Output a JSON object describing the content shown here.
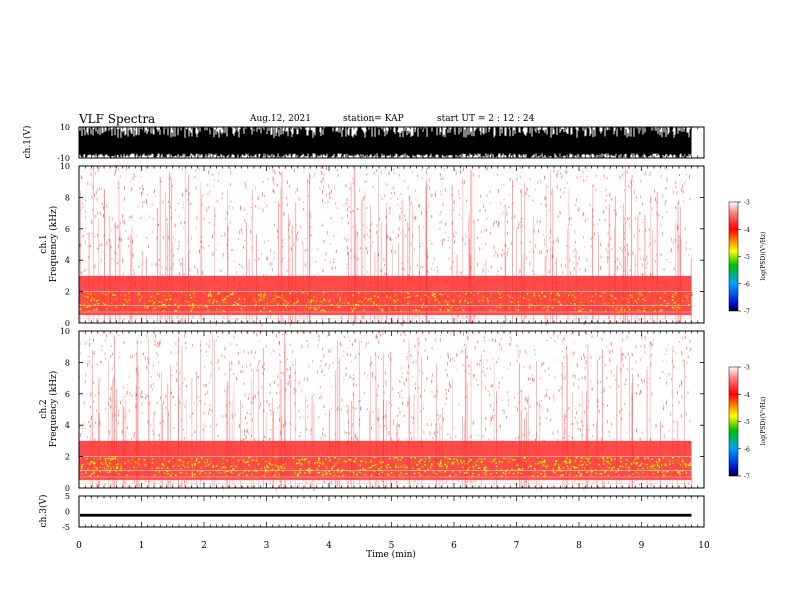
{
  "header": {
    "title": "VLF Spectra",
    "date": "Aug.12, 2021",
    "station": "station= KAP",
    "start": "start  UT  =   2 : 12 : 24"
  },
  "colors": {
    "strip": "#000000",
    "spectrogram_background": "#ffffff",
    "colormap": [
      "#ffffff",
      "#ff8080",
      "#ff0000",
      "#ff8000",
      "#ffff00",
      "#00c000",
      "#00a0ff",
      "#0000c0",
      "#000000"
    ]
  },
  "chart_data": [
    {
      "type": "area",
      "panel": "ch1-waveform",
      "ylabel": "ch.1(V)",
      "ylim": [
        -10,
        10
      ],
      "y_ticks": [
        "10",
        "-10"
      ],
      "x_ticks": [
        0,
        1,
        2,
        3,
        4,
        5,
        6,
        7,
        8,
        9,
        10
      ],
      "xlim": [
        0,
        10
      ],
      "style": "dense black oscillating trace filling most of range",
      "data_end_min": 9.8
    },
    {
      "type": "heatmap",
      "panel": "ch1-spectrogram",
      "ylabel": "ch.1\nFrequency (kHz)",
      "ylim": [
        0,
        10
      ],
      "y_ticks": [
        "0",
        "2",
        "4",
        "6",
        "8",
        "10"
      ],
      "xlim": [
        0,
        10
      ],
      "data_end_min": 9.8,
      "colorbar": {
        "label": "log(PSD)(V²/Hz)",
        "range": [
          -7,
          -3
        ],
        "ticks": [
          "-3",
          "-4",
          "-5",
          "-6",
          "-7"
        ]
      },
      "bands": [
        {
          "from_khz": 0.5,
          "to_khz": 3.0,
          "level": "red, log PSD about -4"
        },
        {
          "from_khz": 0.8,
          "to_khz": 2.0,
          "level": "orange-yellow, log PSD about -4.3"
        },
        {
          "from_khz": 3.0,
          "to_khz": 10.0,
          "level": "pale red speckle, log PSD about -3.5"
        }
      ]
    },
    {
      "type": "heatmap",
      "panel": "ch2-spectrogram",
      "ylabel": "ch.2\nFrequency (kHz)",
      "ylim": [
        0,
        10
      ],
      "y_ticks": [
        "0",
        "2",
        "4",
        "6",
        "8",
        "10"
      ],
      "xlim": [
        0,
        10
      ],
      "data_end_min": 9.8,
      "colorbar": {
        "label": "log(PSD)(V²/Hz)",
        "range": [
          -7,
          -3
        ],
        "ticks": [
          "-3",
          "-4",
          "-5",
          "-6",
          "-7"
        ]
      },
      "bands": [
        {
          "from_khz": 0.5,
          "to_khz": 3.0,
          "level": "red, log PSD about -4"
        },
        {
          "from_khz": 0.8,
          "to_khz": 2.0,
          "level": "yellow-green, log PSD about -4.7"
        },
        {
          "from_khz": 3.0,
          "to_khz": 10.0,
          "level": "pale red speckle, log PSD about -3.5"
        }
      ]
    },
    {
      "type": "line",
      "panel": "ch3-waveform",
      "ylabel": "ch.3(V)",
      "ylim": [
        -5,
        5
      ],
      "y_ticks": [
        "5",
        "0",
        "-5"
      ],
      "xlabel": "Time  (min)",
      "xlim": [
        0,
        10
      ],
      "x_ticks": [
        "0",
        "1",
        "2",
        "3",
        "4",
        "5",
        "6",
        "7",
        "8",
        "9",
        "10"
      ],
      "level_v": -1.2,
      "data_end_min": 9.8
    }
  ]
}
